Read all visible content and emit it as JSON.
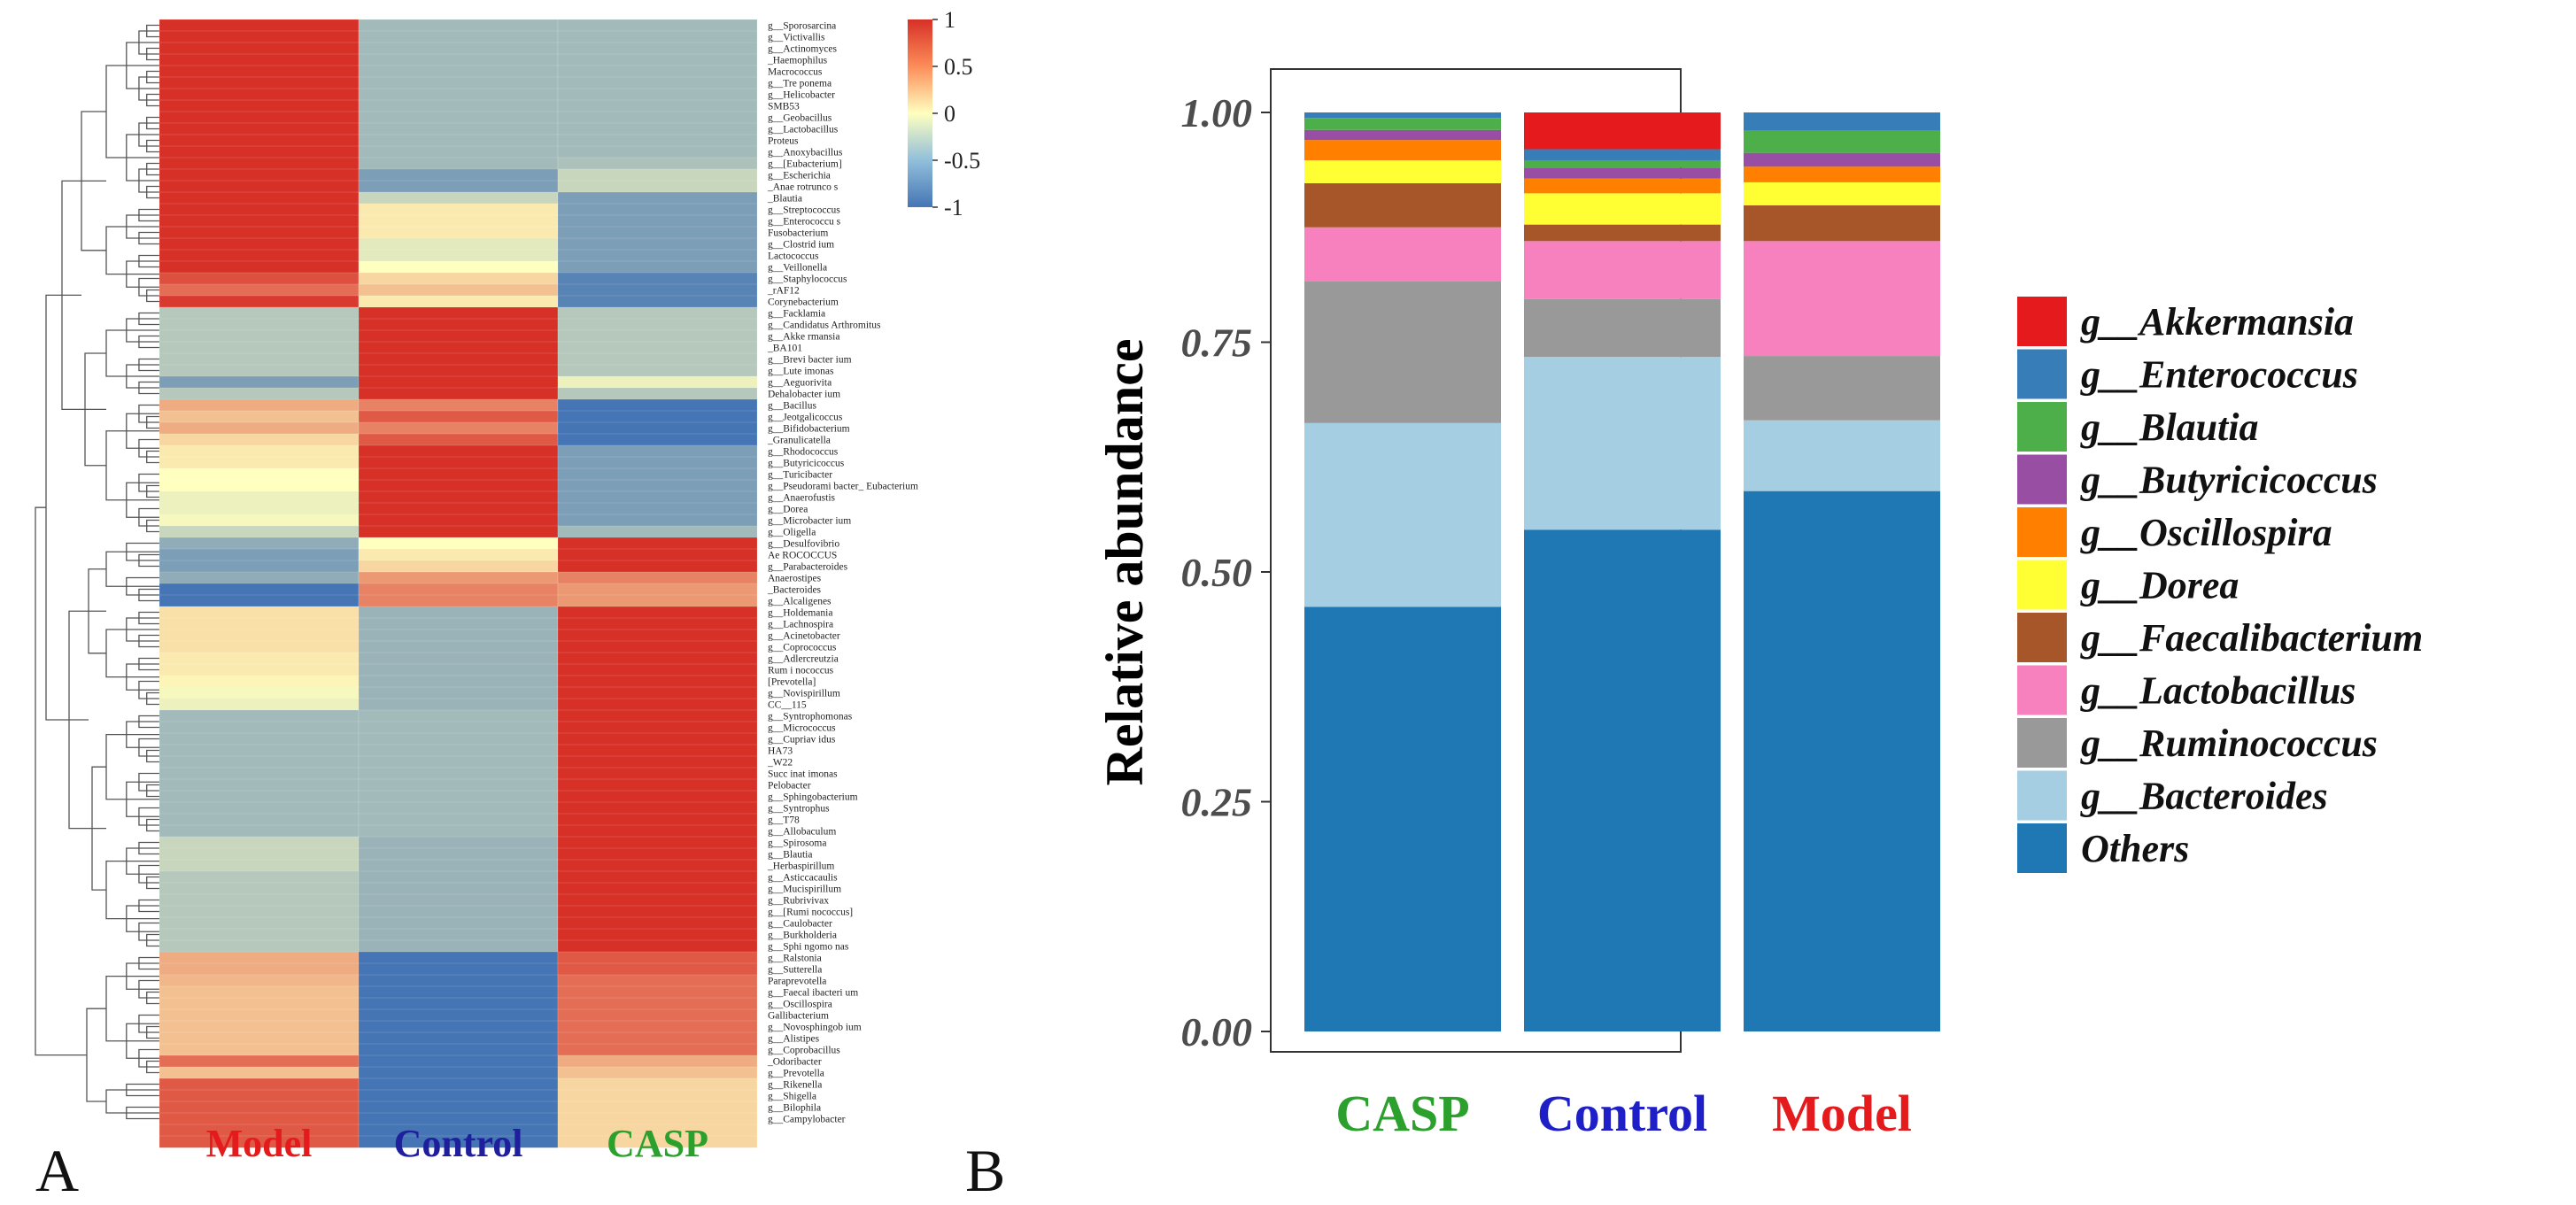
{
  "panel_labels": {
    "a": "A",
    "b": "B"
  },
  "chart_data": [
    {
      "type": "heatmap",
      "panel": "A",
      "columns": [
        "Model",
        "Control",
        "CASP"
      ],
      "column_colors": [
        "#e41a1c",
        "#1f1f9e",
        "#2ca02c"
      ],
      "color_scale": {
        "min": -1,
        "max": 1,
        "colors": [
          "#4575b4",
          "#ffffbf",
          "#d73027"
        ],
        "ticks": [
          "1",
          "0.5",
          "0",
          "-0.5",
          "-1"
        ]
      },
      "rows": [
        "g__Sporosarcina",
        "g__Victivallis",
        "g__Actinomyces",
        "_Haemophilus",
        "Macrococcus",
        "g__Tre ponema",
        "g__Helicobacter",
        "SMB53",
        "g__Geobacillus",
        "g__Lactobacillus",
        "Proteus",
        "g__Anoxybacillus",
        "g__[Eubacterium]",
        "g__Escherichia",
        "_Anae rotrunco s",
        "_Blautia",
        "g__Streptococcus",
        "g__Enterococcu s",
        "Fusobacterium",
        "g__Clostrid ium",
        "Lactococcus",
        "g__Veillonella",
        "g__Staphylococcus",
        "_rAF12",
        "Corynebacterium",
        "g__Facklamia",
        "g__Candidatus Arthromitus",
        "g__Akke rmansia",
        "_BA101",
        "g__Brevi bacter ium",
        "g__Lute imonas",
        "g__Aeguorivita",
        "Dehalobacter ium",
        "g__Bacillus",
        "g__Jeotgalicoccus",
        "g__Bifidobacterium",
        "_Granulicatella",
        "g__Rhodococcus",
        "g__Butyricicoccus",
        "g__Turicibacter",
        "g__Pseudorami bacter_ Eubacterium",
        "g__Anaerofustis",
        "g__Dorea",
        "g__Microbacter ium",
        "g__Oligella",
        "g__Desulfovibrio",
        "Ae ROCOCCUS",
        "g__Parabacteroides",
        "Anaerostipes",
        "_Bacteroides",
        "g__Alcaligenes",
        "g__Holdemania",
        "g__Lachnospira",
        "g__Acinetobacter",
        "g__Coprococcus",
        "g__Adlercreutzia",
        "Rum i nococcus",
        "[Prevotella]",
        "g__Novispirillum",
        "CC__115",
        "g__Syntrophomonas",
        "g__Micrococcus",
        "g__Cupriav idus",
        "HA73",
        "_W22",
        "Succ inat imonas",
        "Pelobacter",
        "g__Sphingobacterium",
        "g__Syntrophus",
        "g__T78",
        "g__Allobaculum",
        "g__Spirosoma",
        "g__Blautia",
        "_Herbaspirillum",
        "g__Asticcacaulis",
        "g__Mucispirillum",
        "g__Rubrivivax",
        "g__[Rumi nococcus]",
        "g__Caulobacter",
        "g__Burkholderia",
        "g__Sphi ngomo nas",
        "g__Ralstonia",
        "g__Sutterella",
        "Paraprevotella",
        "g__Faecal ibacteri um",
        "g__Oscillospira",
        "Gallibacterium",
        "g__Novosphingob ium",
        "g__Alistipes",
        "g__Coprobacillus",
        "_Odoribacter",
        "g__Prevotella",
        "g__Rikenella",
        "g__Shigella",
        "g__Bilophila",
        "g__Campylobacter"
      ],
      "values": [
        [
          1,
          -0.5,
          -0.5
        ],
        [
          1,
          -0.5,
          -0.5
        ],
        [
          1,
          -0.5,
          -0.5
        ],
        [
          1,
          -0.5,
          -0.5
        ],
        [
          1,
          -0.5,
          -0.5
        ],
        [
          1,
          -0.5,
          -0.5
        ],
        [
          1,
          -0.5,
          -0.5
        ],
        [
          1,
          -0.5,
          -0.5
        ],
        [
          1,
          -0.5,
          -0.5
        ],
        [
          1,
          -0.5,
          -0.5
        ],
        [
          1,
          -0.5,
          -0.5
        ],
        [
          1,
          -0.5,
          -0.5
        ],
        [
          1,
          -0.5,
          -0.45
        ],
        [
          1,
          -0.7,
          -0.3
        ],
        [
          1,
          -0.7,
          -0.3
        ],
        [
          1,
          -0.3,
          -0.7
        ],
        [
          1,
          0.1,
          -0.7
        ],
        [
          1,
          0.1,
          -0.7
        ],
        [
          1,
          0.1,
          -0.7
        ],
        [
          1,
          -0.15,
          -0.7
        ],
        [
          1,
          -0.15,
          -0.7
        ],
        [
          1,
          0.0,
          -0.7
        ],
        [
          0.85,
          0.2,
          -0.9
        ],
        [
          0.7,
          0.3,
          -0.9
        ],
        [
          0.95,
          0.1,
          -0.9
        ],
        [
          -0.4,
          1,
          -0.4
        ],
        [
          -0.4,
          1,
          -0.4
        ],
        [
          -0.4,
          1,
          -0.4
        ],
        [
          -0.4,
          1,
          -0.4
        ],
        [
          -0.4,
          1,
          -0.4
        ],
        [
          -0.4,
          1,
          -0.4
        ],
        [
          -0.7,
          1,
          -0.1
        ],
        [
          -0.4,
          1,
          -0.4
        ],
        [
          0.4,
          0.6,
          -1
        ],
        [
          0.3,
          0.8,
          -1
        ],
        [
          0.4,
          0.6,
          -1
        ],
        [
          0.2,
          0.8,
          -1
        ],
        [
          0.1,
          1,
          -0.7
        ],
        [
          0.1,
          1,
          -0.7
        ],
        [
          0.0,
          1,
          -0.7
        ],
        [
          0.0,
          1,
          -0.7
        ],
        [
          -0.1,
          1,
          -0.7
        ],
        [
          -0.1,
          1,
          -0.7
        ],
        [
          -0.05,
          1,
          -0.7
        ],
        [
          -0.3,
          1,
          -0.5
        ],
        [
          -0.6,
          0.0,
          1
        ],
        [
          -0.7,
          0.1,
          1
        ],
        [
          -0.7,
          0.2,
          1
        ],
        [
          -0.6,
          0.5,
          0.6
        ],
        [
          -1,
          0.6,
          0.5
        ],
        [
          -1,
          0.6,
          0.5
        ],
        [
          0.15,
          -0.55,
          1
        ],
        [
          0.15,
          -0.55,
          1
        ],
        [
          0.15,
          -0.55,
          1
        ],
        [
          0.15,
          -0.55,
          1
        ],
        [
          0.1,
          -0.55,
          1
        ],
        [
          0.1,
          -0.55,
          1
        ],
        [
          0.05,
          -0.55,
          1
        ],
        [
          -0.05,
          -0.55,
          1
        ],
        [
          -0.1,
          -0.55,
          1
        ],
        [
          -0.5,
          -0.5,
          1
        ],
        [
          -0.5,
          -0.5,
          1
        ],
        [
          -0.5,
          -0.5,
          1
        ],
        [
          -0.5,
          -0.5,
          1
        ],
        [
          -0.5,
          -0.5,
          1
        ],
        [
          -0.5,
          -0.5,
          1
        ],
        [
          -0.5,
          -0.5,
          1
        ],
        [
          -0.5,
          -0.5,
          1
        ],
        [
          -0.5,
          -0.5,
          1
        ],
        [
          -0.5,
          -0.5,
          1
        ],
        [
          -0.5,
          -0.5,
          1
        ],
        [
          -0.3,
          -0.55,
          1
        ],
        [
          -0.3,
          -0.55,
          1
        ],
        [
          -0.3,
          -0.55,
          1
        ],
        [
          -0.4,
          -0.55,
          1
        ],
        [
          -0.4,
          -0.55,
          1
        ],
        [
          -0.4,
          -0.55,
          1
        ],
        [
          -0.4,
          -0.55,
          1
        ],
        [
          -0.4,
          -0.55,
          1
        ],
        [
          -0.4,
          -0.55,
          1
        ],
        [
          -0.4,
          -0.55,
          1
        ],
        [
          0.4,
          -1,
          0.8
        ],
        [
          0.4,
          -1,
          0.8
        ],
        [
          0.35,
          -1,
          0.7
        ],
        [
          0.3,
          -1,
          0.7
        ],
        [
          0.3,
          -1,
          0.7
        ],
        [
          0.3,
          -1,
          0.7
        ],
        [
          0.3,
          -1,
          0.7
        ],
        [
          0.3,
          -1,
          0.7
        ],
        [
          0.3,
          -1,
          0.7
        ],
        [
          0.7,
          -1,
          0.4
        ],
        [
          0.3,
          -1,
          0.3
        ],
        [
          0.8,
          -1,
          0.2
        ],
        [
          0.8,
          -1,
          0.2
        ],
        [
          0.8,
          -1,
          0.2
        ],
        [
          0.8,
          -1,
          0.2
        ],
        [
          0.8,
          -1,
          0.2
        ],
        [
          0.8,
          -1,
          0.2
        ]
      ]
    },
    {
      "type": "bar",
      "stacked": true,
      "panel": "B",
      "categories": [
        "CASP",
        "Control",
        "Model"
      ],
      "category_colors": [
        "#2ca02c",
        "#1f1fc8",
        "#e41a1c"
      ],
      "ylabel": "Relative abundance",
      "xlabel": "",
      "ylim": [
        0,
        1
      ],
      "yticks": [
        "0.00",
        "0.25",
        "0.50",
        "0.75",
        "1.00"
      ],
      "series": [
        {
          "name": "Others",
          "color": "#1f77b4",
          "values": [
            0.462,
            0.546,
            0.588
          ]
        },
        {
          "name": "g__Bacteroides",
          "color": "#a6cee3",
          "values": [
            0.2,
            0.188,
            0.077
          ]
        },
        {
          "name": "g__Ruminococcus",
          "color": "#999999",
          "values": [
            0.154,
            0.063,
            0.07
          ]
        },
        {
          "name": "g__Lactobacillus",
          "color": "#f781bf",
          "values": [
            0.059,
            0.063,
            0.125
          ]
        },
        {
          "name": "g__Faecalibacterium",
          "color": "#a65628",
          "values": [
            0.048,
            0.018,
            0.039
          ]
        },
        {
          "name": "g__Dorea",
          "color": "#ffff33",
          "values": [
            0.025,
            0.034,
            0.025
          ]
        },
        {
          "name": "g__Oscillospira",
          "color": "#ff7f00",
          "values": [
            0.022,
            0.016,
            0.017
          ]
        },
        {
          "name": "g__Butyricicoccus",
          "color": "#984ea3",
          "values": [
            0.011,
            0.012,
            0.015
          ]
        },
        {
          "name": "g__Blautia",
          "color": "#4daf4a",
          "values": [
            0.013,
            0.008,
            0.024
          ]
        },
        {
          "name": "g__Enterococcus",
          "color": "#377eb8",
          "values": [
            0.006,
            0.012,
            0.02
          ]
        },
        {
          "name": "g__Akkermansia",
          "color": "#e41a1c",
          "values": [
            0.0,
            0.04,
            0.0
          ]
        }
      ],
      "legend_order": [
        "g__Akkermansia",
        "g__Enterococcus",
        "g__Blautia",
        "g__Butyricicoccus",
        "g__Oscillospira",
        "g__Dorea",
        "g__Faecalibacterium",
        "g__Lactobacillus",
        "g__Ruminococcus",
        "g__Bacteroides",
        "Others"
      ]
    }
  ]
}
